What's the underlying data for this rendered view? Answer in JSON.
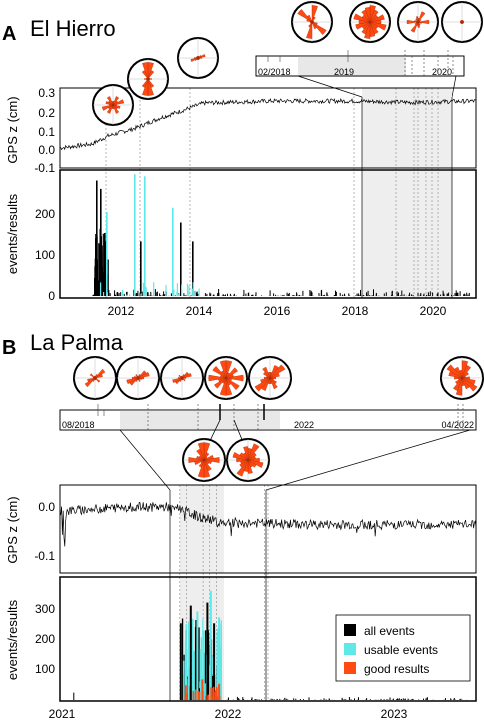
{
  "panels": [
    {
      "letter": "A",
      "title": "El Hierro",
      "x_ticks": [
        "2012",
        "2014",
        "2016",
        "2018",
        "2020"
      ],
      "gps": {
        "ylabel": "GPS z (cm)",
        "y_ticks": [
          "0.3",
          "0.2",
          "0.1",
          "0.0",
          "-0.1"
        ],
        "ylim": [
          -0.1,
          0.3
        ]
      },
      "events": {
        "ylabel": "events/results",
        "y_ticks": [
          "200",
          "100",
          "0"
        ],
        "ylim": [
          0,
          300
        ]
      },
      "inset_ticks": [
        "02/2018",
        "2019",
        "2020"
      ]
    },
    {
      "letter": "B",
      "title": "La Palma",
      "x_ticks": [
        "2021",
        "2022",
        "2023"
      ],
      "gps": {
        "ylabel": "GPS z (cm)",
        "y_ticks": [
          "0.0",
          "-0.1"
        ],
        "ylim": [
          -0.15,
          0.05
        ]
      },
      "events": {
        "ylabel": "events/results",
        "y_ticks": [
          "300",
          "200",
          "100"
        ],
        "ylim": [
          0,
          400
        ]
      },
      "inset_ticks": [
        "08/2018",
        "2022",
        "04/2022"
      ]
    }
  ],
  "legend": [
    {
      "label": "all events",
      "color": "#000000"
    },
    {
      "label": "usable events",
      "color": "#5ee8e8"
    },
    {
      "label": "good results",
      "color": "#ff4a12"
    }
  ],
  "colors": {
    "rose": "#ff4a12",
    "usable": "#5ee8e8",
    "all": "#000000",
    "shade": "#e6e6e6"
  },
  "chart_data": [
    {
      "type": "line",
      "title": "El Hierro",
      "ylabel": "GPS z (cm)",
      "ylim": [
        -0.1,
        0.3
      ],
      "xlim": [
        2010.7,
        2021.1
      ],
      "series": [
        {
          "x": [
            2010.7,
            2011.5,
            2011.9,
            2012.6,
            2013.2,
            2013.8,
            2014.3,
            2016.0,
            2018.0,
            2019.5,
            2021.1
          ],
          "values": [
            0.0,
            0.02,
            0.06,
            0.1,
            0.15,
            0.19,
            0.225,
            0.235,
            0.235,
            0.228,
            0.235
          ]
        }
      ]
    },
    {
      "type": "bar",
      "ylabel": "events/results",
      "ylim": [
        0,
        300
      ],
      "xlim": [
        2010.7,
        2021.1
      ],
      "series": [
        {
          "name": "all events",
          "x": [
            2011.6,
            2011.7,
            2011.8,
            2012.7,
            2013.7,
            2014.0
          ],
          "values": [
            275,
            255,
            150,
            130,
            175,
            130
          ]
        },
        {
          "name": "usable events",
          "x": [
            2011.85,
            2012.55,
            2012.8,
            2013.5
          ],
          "values": [
            200,
            290,
            285,
            210
          ]
        }
      ]
    },
    {
      "type": "line",
      "title": "La Palma",
      "ylabel": "GPS z (cm)",
      "ylim": [
        -0.15,
        0.05
      ],
      "xlim": [
        2021.0,
        2023.5
      ],
      "series": [
        {
          "x": [
            2021.0,
            2021.4,
            2021.7,
            2021.85,
            2022.0,
            2022.5,
            2023.0,
            2023.5
          ],
          "values": [
            -0.01,
            0.0,
            0.0,
            -0.025,
            -0.035,
            -0.04,
            -0.04,
            -0.04
          ]
        }
      ]
    },
    {
      "type": "bar",
      "ylabel": "events/results",
      "ylim": [
        0,
        400
      ],
      "xlim": [
        2021.0,
        2023.5
      ],
      "series": [
        {
          "name": "all events",
          "x": [
            2021.72,
            2021.78,
            2021.88,
            2021.92
          ],
          "values": [
            260,
            320,
            330,
            260
          ]
        },
        {
          "name": "usable events",
          "x": [
            2021.75,
            2021.82,
            2021.9,
            2021.95
          ],
          "values": [
            200,
            300,
            370,
            280
          ]
        },
        {
          "name": "good results",
          "x": [
            2021.75,
            2021.85,
            2021.95
          ],
          "values": [
            50,
            70,
            55
          ]
        }
      ]
    }
  ]
}
